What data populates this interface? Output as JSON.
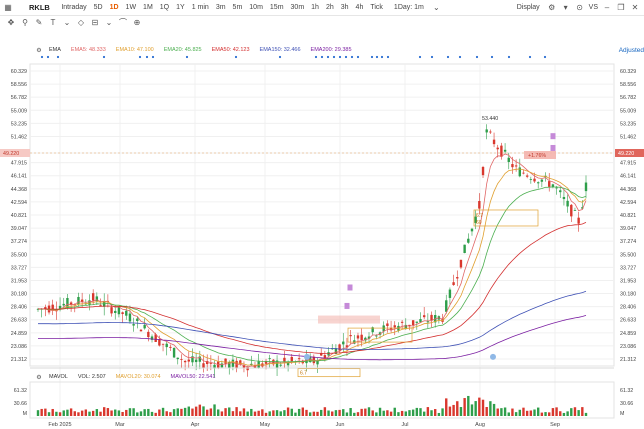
{
  "toolbar": {
    "symbol": "RKLB",
    "timeframes": [
      "Intraday",
      "5D",
      "1D",
      "1W",
      "1M",
      "1Q",
      "1Y",
      "1 min",
      "3m",
      "5m",
      "10m",
      "15m",
      "30m",
      "1h",
      "2h",
      "3h",
      "4h",
      "Tick"
    ],
    "active_timeframe": "1D",
    "interval_select": "1Day: 1m",
    "display_label": "Display",
    "vs_label": "VS"
  },
  "ema_legend": {
    "label": "EMA",
    "items": [
      {
        "name": "EMA5:",
        "value": "48.333",
        "color": "#e06666"
      },
      {
        "name": "EMA10:",
        "value": "47.100",
        "color": "#e0a030"
      },
      {
        "name": "EMA20:",
        "value": "45.825",
        "color": "#4caf50"
      },
      {
        "name": "EMA50:",
        "value": "42.123",
        "color": "#d32f2f"
      },
      {
        "name": "EMA150:",
        "value": "32.466",
        "color": "#3f51b5"
      },
      {
        "name": "EMA200:",
        "value": "29.385",
        "color": "#7b1fa2"
      }
    ],
    "adjusted_label": "Adjusted"
  },
  "price_axis": [
    "60.329",
    "58.556",
    "56.782",
    "55.009",
    "53.235",
    "51.462",
    "49.220",
    "47.915",
    "46.141",
    "44.368",
    "42.594",
    "40.821",
    "39.047",
    "37.274",
    "35.500",
    "33.727",
    "31.953",
    "30.180",
    "28.406",
    "26.633",
    "24.859",
    "23.086",
    "21.312"
  ],
  "current_price": "49.220",
  "high_label": "53.440",
  "change_tag": "+1.76%",
  "zones": [
    {
      "top": "6.7",
      "bottom": "60"
    },
    {
      "top": "6.7",
      "bottom": ""
    }
  ],
  "vol_legend": {
    "label": "MAVOL",
    "items": [
      {
        "name": "VOL:",
        "value": "2.507",
        "color": "#333"
      },
      {
        "name": "MAVOL20:",
        "value": "30.074",
        "color": "#e0a030"
      },
      {
        "name": "MAVOL50:",
        "value": "22.541",
        "color": "#7b1fa2"
      }
    ]
  },
  "vol_axis": [
    "61.32",
    "30.66",
    "M"
  ],
  "time_axis": [
    "Feb 2025",
    "Mar",
    "Apr",
    "May",
    "Jun",
    "Jul",
    "Aug",
    "Sep"
  ]
}
